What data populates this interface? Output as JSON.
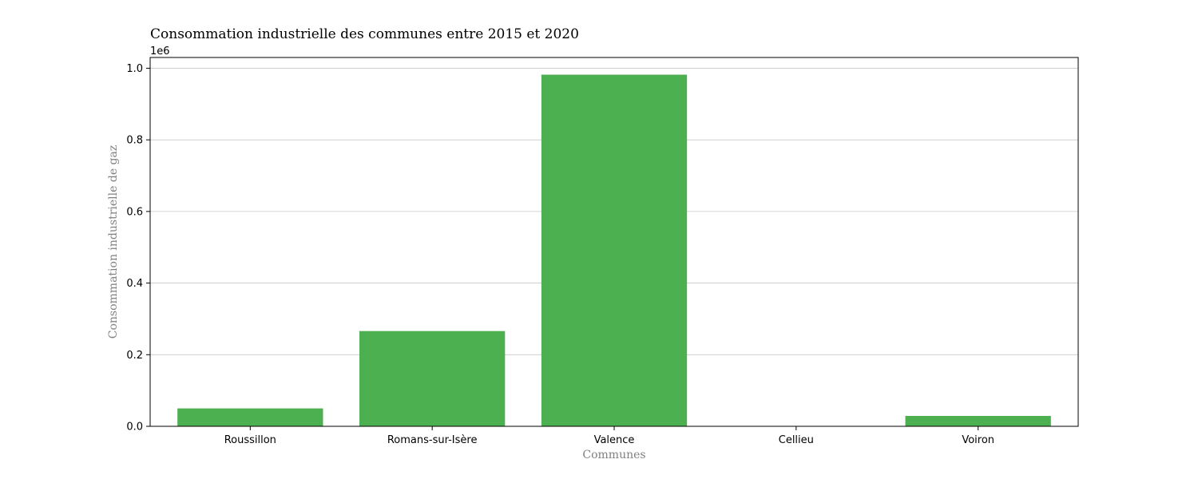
{
  "chart_data": {
    "type": "bar",
    "title": "Consommation industrielle des communes entre 2015 et 2020",
    "xlabel": "Communes",
    "ylabel": "Consommation industrielle de gaz",
    "categories": [
      "Roussillon",
      "Romans-sur-Isère",
      "Valence",
      "Cellieu",
      "Voiron"
    ],
    "values": [
      50000,
      266000,
      982000,
      0,
      29000
    ],
    "ylim": [
      0,
      1030000
    ],
    "y_scale_factor": 1000000,
    "y_offset_label": "1e6",
    "yticks": [
      0,
      200000,
      400000,
      600000,
      800000,
      1000000
    ],
    "ytick_labels": [
      "0.0",
      "0.2",
      "0.4",
      "0.6",
      "0.8",
      "1.0"
    ],
    "grid": "horizontal",
    "bar_color": "#4caf50",
    "grid_color": "#c8c8c8"
  }
}
